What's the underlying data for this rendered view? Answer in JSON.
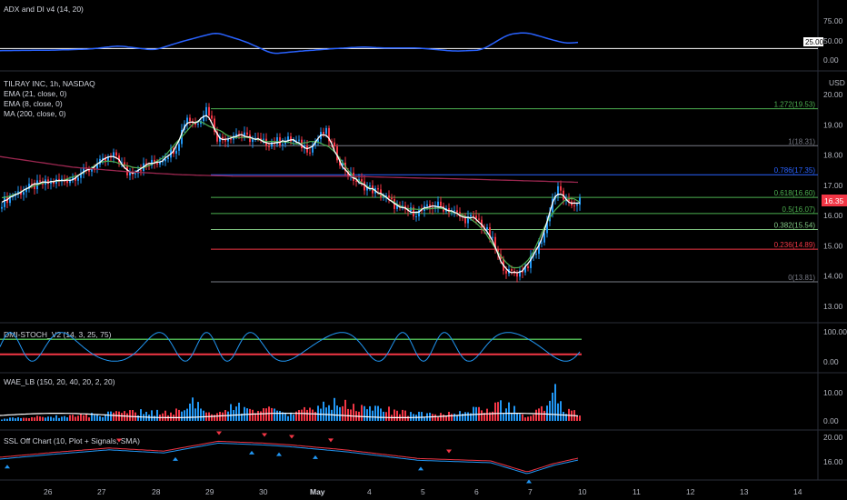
{
  "panes": {
    "adx": {
      "title": "ADX and DI v4 (14, 20)",
      "ticks": [
        "75.00",
        "50.00",
        "25.00",
        "0.00"
      ],
      "threshold": 25
    },
    "price": {
      "title": "TILRAY INC, 1h, NASDAQ",
      "legend": [
        "EMA (21, close, 0)",
        "EMA (8, close, 0)",
        "MA (200, close, 0)"
      ],
      "currency": "USD",
      "ticks": [
        "20.00",
        "19.00",
        "18.00",
        "17.00",
        "16.00",
        "15.00",
        "14.00",
        "13.00"
      ],
      "last_price": "16.35",
      "fib_levels": [
        {
          "label": "1.272(19.53)",
          "price": 19.53,
          "color": "#4caf50"
        },
        {
          "label": "1(18.31)",
          "price": 18.31,
          "color": "#787b86"
        },
        {
          "label": "0.786(17.35)",
          "price": 17.35,
          "color": "#2962ff"
        },
        {
          "label": "0.618(16.60)",
          "price": 16.6,
          "color": "#4caf50"
        },
        {
          "label": "0.5(16.07)",
          "price": 16.07,
          "color": "#4caf50"
        },
        {
          "label": "0.382(15.54)",
          "price": 15.54,
          "color": "#81c784"
        },
        {
          "label": "0.236(14.89)",
          "price": 14.89,
          "color": "#f23645"
        },
        {
          "label": "0(13.81)",
          "price": 13.81,
          "color": "#787b86"
        }
      ]
    },
    "dmi": {
      "title": "DMI-STOCH_V2 (14, 3, 25, 75)",
      "ticks": [
        "100.00",
        "0.00"
      ],
      "upper": 75,
      "lower": 25
    },
    "wae": {
      "title": "WAE_LB (150, 20, 40, 20, 2, 20)",
      "ticks": [
        "10.00",
        "0.00"
      ]
    },
    "ssl": {
      "title": "SSL Off Chart (10, Plot + Signals, SMA)",
      "ticks": [
        "20.00",
        "16.00"
      ]
    }
  },
  "time_axis": [
    "26",
    "27",
    "28",
    "29",
    "30",
    "May",
    "4",
    "5",
    "6",
    "7",
    "10",
    "11",
    "12",
    "13",
    "14"
  ],
  "colors": {
    "background": "#000000",
    "up": "#2196f3",
    "down": "#f23645",
    "ema21": "#4caf50",
    "ema8": "#ffffff",
    "ma200": "#9c2750",
    "adx": "#2962ff",
    "price_tag": "#f23645"
  }
}
